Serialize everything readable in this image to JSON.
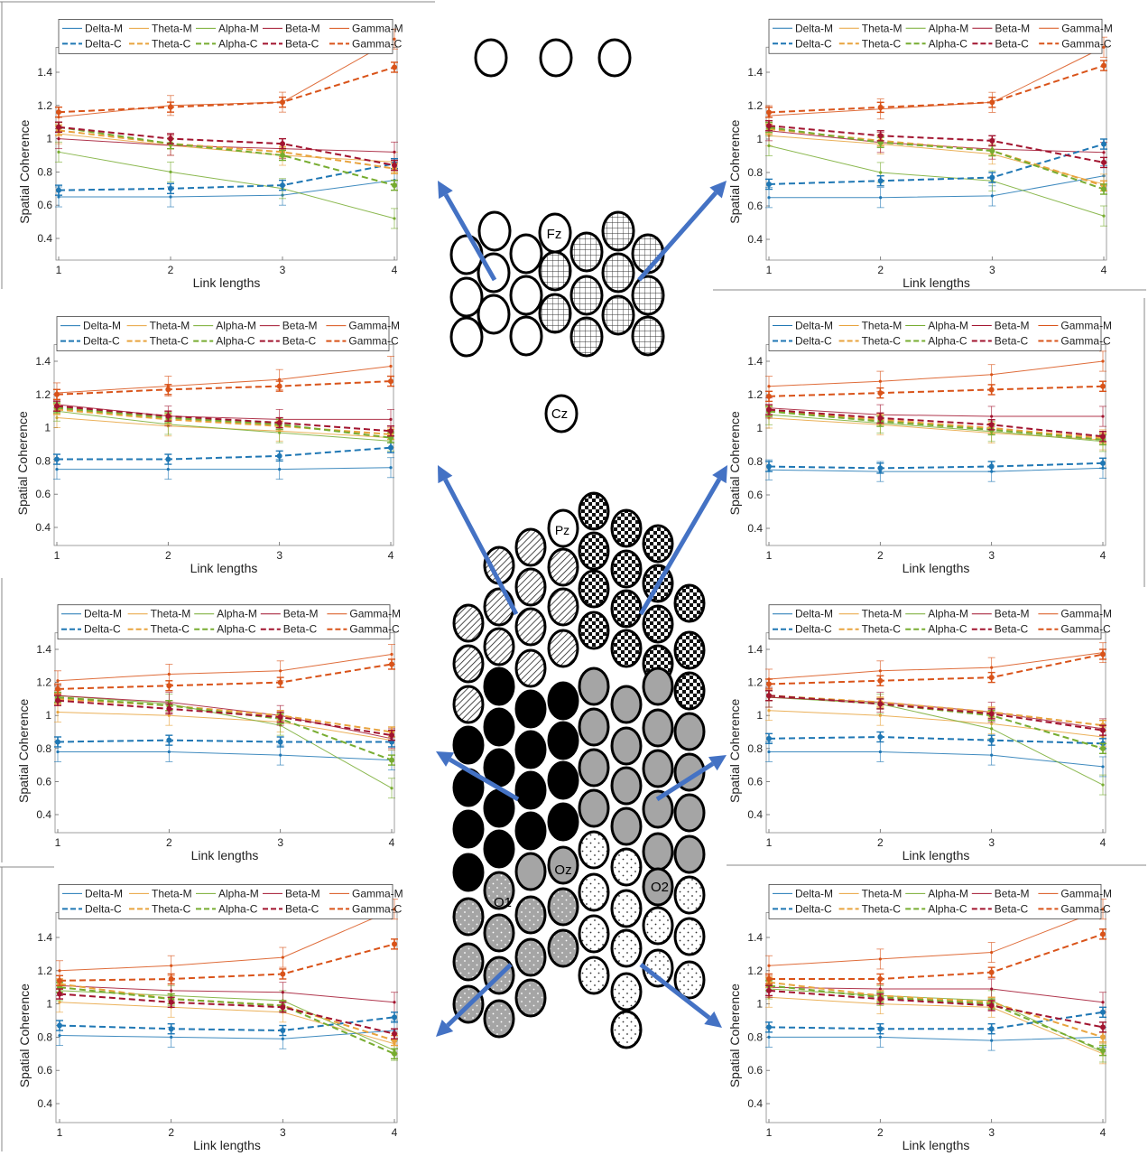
{
  "colors": {
    "Delta": "#1f77b4",
    "Theta": "#e8a33d",
    "Alpha": "#77ac30",
    "Beta": "#a2142f",
    "Gamma": "#d95319",
    "arrow": "#4472c4"
  },
  "legend": {
    "row1": [
      "Delta-M",
      "Theta-M",
      "Alpha-M",
      "Beta-M",
      "Gamma-M"
    ],
    "row2": [
      "Delta-C",
      "Theta-C",
      "Alpha-C",
      "Beta-C",
      "Gamma-C"
    ]
  },
  "electrode_labels": [
    "Fz",
    "Cz",
    "Pz",
    "Oz",
    "O1",
    "O2"
  ],
  "chart_data": [
    {
      "type": "line",
      "panel": "top-left",
      "xlabel": "Link lengths",
      "ylabel": "Spatial Coherence",
      "x": [
        1,
        2,
        3,
        4
      ],
      "xticks": [
        "1",
        "2",
        "3",
        "4"
      ],
      "ylim": [
        0.3,
        1.55
      ],
      "yticks": [
        "0.4",
        "0.6",
        "0.8",
        "1",
        "1.2",
        "1.4"
      ],
      "series": [
        {
          "name": "Delta-M",
          "values": [
            0.65,
            0.65,
            0.66,
            0.75
          ]
        },
        {
          "name": "Theta-M",
          "values": [
            1.03,
            0.96,
            0.9,
            0.86
          ]
        },
        {
          "name": "Alpha-M",
          "values": [
            0.92,
            0.8,
            0.7,
            0.52
          ]
        },
        {
          "name": "Beta-M",
          "values": [
            1.0,
            0.96,
            0.94,
            0.92
          ]
        },
        {
          "name": "Gamma-M",
          "values": [
            1.13,
            1.2,
            1.22,
            1.6
          ]
        },
        {
          "name": "Delta-C",
          "values": [
            0.69,
            0.7,
            0.72,
            0.85
          ]
        },
        {
          "name": "Theta-C",
          "values": [
            1.05,
            0.97,
            0.92,
            0.82
          ]
        },
        {
          "name": "Alpha-C",
          "values": [
            1.07,
            0.97,
            0.9,
            0.72
          ]
        },
        {
          "name": "Beta-C",
          "values": [
            1.07,
            1.0,
            0.97,
            0.84
          ]
        },
        {
          "name": "Gamma-C",
          "values": [
            1.16,
            1.19,
            1.22,
            1.43
          ]
        }
      ]
    },
    {
      "type": "line",
      "panel": "top-right",
      "xlabel": "Link lengths",
      "ylabel": "Spatial Coherence",
      "x": [
        1,
        2,
        3,
        4
      ],
      "xticks": [
        "1",
        "2",
        "3",
        "4"
      ],
      "ylim": [
        0.3,
        1.55
      ],
      "yticks": [
        "0.4",
        "0.6",
        "0.8",
        "1",
        "1.2",
        "1.4"
      ],
      "series": [
        {
          "name": "Delta-M",
          "values": [
            0.65,
            0.65,
            0.66,
            0.78
          ]
        },
        {
          "name": "Theta-M",
          "values": [
            1.02,
            0.97,
            0.91,
            0.73
          ]
        },
        {
          "name": "Alpha-M",
          "values": [
            0.96,
            0.8,
            0.75,
            0.54
          ]
        },
        {
          "name": "Beta-M",
          "values": [
            1.05,
            0.98,
            0.94,
            0.92
          ]
        },
        {
          "name": "Gamma-M",
          "values": [
            1.14,
            1.18,
            1.22,
            1.55
          ]
        },
        {
          "name": "Delta-C",
          "values": [
            0.73,
            0.75,
            0.77,
            0.97
          ]
        },
        {
          "name": "Theta-C",
          "values": [
            1.06,
            0.99,
            0.93,
            0.72
          ]
        },
        {
          "name": "Alpha-C",
          "values": [
            1.07,
            0.98,
            0.93,
            0.7
          ]
        },
        {
          "name": "Beta-C",
          "values": [
            1.08,
            1.02,
            0.99,
            0.86
          ]
        },
        {
          "name": "Gamma-C",
          "values": [
            1.16,
            1.19,
            1.22,
            1.44
          ]
        }
      ]
    },
    {
      "type": "line",
      "panel": "middle-upper-left",
      "xlabel": "Link lengths",
      "ylabel": "Spatial Coherence",
      "x": [
        1,
        2,
        3,
        4
      ],
      "xticks": [
        "1",
        "2",
        "3",
        "4"
      ],
      "ylim": [
        0.3,
        1.5
      ],
      "yticks": [
        "0.4",
        "0.6",
        "0.8",
        "1",
        "1.2",
        "1.4"
      ],
      "series": [
        {
          "name": "Delta-M",
          "values": [
            0.75,
            0.75,
            0.75,
            0.76
          ]
        },
        {
          "name": "Theta-M",
          "values": [
            1.06,
            1.01,
            0.98,
            0.94
          ]
        },
        {
          "name": "Alpha-M",
          "values": [
            1.1,
            1.02,
            0.97,
            0.92
          ]
        },
        {
          "name": "Beta-M",
          "values": [
            1.14,
            1.07,
            1.05,
            1.05
          ]
        },
        {
          "name": "Gamma-M",
          "values": [
            1.21,
            1.25,
            1.29,
            1.37
          ]
        },
        {
          "name": "Delta-C",
          "values": [
            0.81,
            0.81,
            0.83,
            0.88
          ]
        },
        {
          "name": "Theta-C",
          "values": [
            1.11,
            1.05,
            1.01,
            0.96
          ]
        },
        {
          "name": "Alpha-C",
          "values": [
            1.12,
            1.06,
            1.02,
            0.94
          ]
        },
        {
          "name": "Beta-C",
          "values": [
            1.13,
            1.07,
            1.03,
            0.98
          ]
        },
        {
          "name": "Gamma-C",
          "values": [
            1.2,
            1.23,
            1.25,
            1.28
          ]
        }
      ]
    },
    {
      "type": "line",
      "panel": "middle-upper-right",
      "xlabel": "Link lengths",
      "ylabel": "Spatial Coherence",
      "x": [
        1,
        2,
        3,
        4
      ],
      "xticks": [
        "1",
        "2",
        "3",
        "4"
      ],
      "ylim": [
        0.3,
        1.5
      ],
      "yticks": [
        "0.4",
        "0.6",
        "0.8",
        "1",
        "1.2",
        "1.4"
      ],
      "series": [
        {
          "name": "Delta-M",
          "values": [
            0.75,
            0.74,
            0.74,
            0.76
          ]
        },
        {
          "name": "Theta-M",
          "values": [
            1.06,
            1.02,
            0.97,
            0.93
          ]
        },
        {
          "name": "Alpha-M",
          "values": [
            1.08,
            1.03,
            0.98,
            0.92
          ]
        },
        {
          "name": "Beta-M",
          "values": [
            1.12,
            1.08,
            1.07,
            1.07
          ]
        },
        {
          "name": "Gamma-M",
          "values": [
            1.25,
            1.28,
            1.32,
            1.4
          ]
        },
        {
          "name": "Delta-C",
          "values": [
            0.77,
            0.76,
            0.77,
            0.79
          ]
        },
        {
          "name": "Theta-C",
          "values": [
            1.1,
            1.05,
            1.0,
            0.94
          ]
        },
        {
          "name": "Alpha-C",
          "values": [
            1.1,
            1.04,
            0.99,
            0.93
          ]
        },
        {
          "name": "Beta-C",
          "values": [
            1.11,
            1.06,
            1.02,
            0.95
          ]
        },
        {
          "name": "Gamma-C",
          "values": [
            1.19,
            1.21,
            1.23,
            1.25
          ]
        }
      ]
    },
    {
      "type": "line",
      "panel": "middle-lower-left",
      "xlabel": "Link lengths",
      "ylabel": "Spatial Coherence",
      "x": [
        1,
        2,
        3,
        4
      ],
      "xticks": [
        "1",
        "2",
        "3",
        "4"
      ],
      "ylim": [
        0.3,
        1.5
      ],
      "yticks": [
        "0.4",
        "0.6",
        "0.8",
        "1",
        "1.2",
        "1.4"
      ],
      "series": [
        {
          "name": "Delta-M",
          "values": [
            0.78,
            0.78,
            0.76,
            0.73
          ]
        },
        {
          "name": "Theta-M",
          "values": [
            1.02,
            1.0,
            0.96,
            0.85
          ]
        },
        {
          "name": "Alpha-M",
          "values": [
            1.12,
            1.07,
            0.94,
            0.56
          ]
        },
        {
          "name": "Beta-M",
          "values": [
            1.12,
            1.08,
            1.0,
            0.86
          ]
        },
        {
          "name": "Gamma-M",
          "values": [
            1.21,
            1.25,
            1.27,
            1.37
          ]
        },
        {
          "name": "Delta-C",
          "values": [
            0.84,
            0.85,
            0.84,
            0.84
          ]
        },
        {
          "name": "Theta-C",
          "values": [
            1.1,
            1.06,
            1.0,
            0.9
          ]
        },
        {
          "name": "Alpha-C",
          "values": [
            1.11,
            1.06,
            0.98,
            0.73
          ]
        },
        {
          "name": "Beta-C",
          "values": [
            1.09,
            1.04,
            0.99,
            0.88
          ]
        },
        {
          "name": "Gamma-C",
          "values": [
            1.16,
            1.18,
            1.2,
            1.31
          ]
        }
      ]
    },
    {
      "type": "line",
      "panel": "middle-lower-right",
      "xlabel": "Link lengths",
      "ylabel": "Spatial Coherence",
      "x": [
        1,
        2,
        3,
        4
      ],
      "xticks": [
        "1",
        "2",
        "3",
        "4"
      ],
      "ylim": [
        0.3,
        1.5
      ],
      "yticks": [
        "0.4",
        "0.6",
        "0.8",
        "1",
        "1.2",
        "1.4"
      ],
      "series": [
        {
          "name": "Delta-M",
          "values": [
            0.78,
            0.78,
            0.76,
            0.69
          ]
        },
        {
          "name": "Theta-M",
          "values": [
            1.03,
            1.0,
            0.95,
            0.87
          ]
        },
        {
          "name": "Alpha-M",
          "values": [
            1.11,
            1.07,
            0.92,
            0.58
          ]
        },
        {
          "name": "Beta-M",
          "values": [
            1.11,
            1.08,
            1.02,
            0.92
          ]
        },
        {
          "name": "Gamma-M",
          "values": [
            1.22,
            1.27,
            1.29,
            1.38
          ]
        },
        {
          "name": "Delta-C",
          "values": [
            0.86,
            0.87,
            0.85,
            0.83
          ]
        },
        {
          "name": "Theta-C",
          "values": [
            1.12,
            1.08,
            1.02,
            0.94
          ]
        },
        {
          "name": "Alpha-C",
          "values": [
            1.12,
            1.07,
            1.0,
            0.8
          ]
        },
        {
          "name": "Beta-C",
          "values": [
            1.12,
            1.07,
            1.01,
            0.91
          ]
        },
        {
          "name": "Gamma-C",
          "values": [
            1.19,
            1.21,
            1.23,
            1.37
          ]
        }
      ]
    },
    {
      "type": "line",
      "panel": "bottom-left",
      "xlabel": "Link lengths",
      "ylabel": "Spatial Coherence",
      "x": [
        1,
        2,
        3,
        4
      ],
      "xticks": [
        "1",
        "2",
        "3",
        "4"
      ],
      "ylim": [
        0.3,
        1.55
      ],
      "yticks": [
        "0.4",
        "0.6",
        "0.8",
        "1",
        "1.2",
        "1.4"
      ],
      "series": [
        {
          "name": "Delta-M",
          "values": [
            0.81,
            0.8,
            0.79,
            0.84
          ]
        },
        {
          "name": "Theta-M",
          "values": [
            1.01,
            0.98,
            0.95,
            0.76
          ]
        },
        {
          "name": "Alpha-M",
          "values": [
            1.08,
            1.05,
            1.02,
            0.72
          ]
        },
        {
          "name": "Beta-M",
          "values": [
            1.11,
            1.08,
            1.07,
            1.01
          ]
        },
        {
          "name": "Gamma-M",
          "values": [
            1.2,
            1.23,
            1.28,
            1.57
          ]
        },
        {
          "name": "Delta-C",
          "values": [
            0.87,
            0.85,
            0.84,
            0.92
          ]
        },
        {
          "name": "Theta-C",
          "values": [
            1.12,
            1.03,
            0.99,
            0.78
          ]
        },
        {
          "name": "Alpha-C",
          "values": [
            1.1,
            1.03,
            0.99,
            0.7
          ]
        },
        {
          "name": "Beta-C",
          "values": [
            1.06,
            1.01,
            0.98,
            0.82
          ]
        },
        {
          "name": "Gamma-C",
          "values": [
            1.14,
            1.15,
            1.18,
            1.36
          ]
        }
      ]
    },
    {
      "type": "line",
      "panel": "bottom-right",
      "xlabel": "Link lengths",
      "ylabel": "Spatial Coherence",
      "x": [
        1,
        2,
        3,
        4
      ],
      "xticks": [
        "1",
        "2",
        "3",
        "4"
      ],
      "ylim": [
        0.3,
        1.55
      ],
      "yticks": [
        "0.4",
        "0.6",
        "0.8",
        "1",
        "1.2",
        "1.4"
      ],
      "series": [
        {
          "name": "Delta-M",
          "values": [
            0.8,
            0.8,
            0.78,
            0.8
          ]
        },
        {
          "name": "Theta-M",
          "values": [
            1.04,
            1.0,
            0.98,
            0.7
          ]
        },
        {
          "name": "Alpha-M",
          "values": [
            1.09,
            1.05,
            1.02,
            0.71
          ]
        },
        {
          "name": "Beta-M",
          "values": [
            1.1,
            1.09,
            1.09,
            1.01
          ]
        },
        {
          "name": "Gamma-M",
          "values": [
            1.23,
            1.27,
            1.31,
            1.57
          ]
        },
        {
          "name": "Delta-C",
          "values": [
            0.86,
            0.85,
            0.85,
            0.95
          ]
        },
        {
          "name": "Theta-C",
          "values": [
            1.13,
            1.05,
            1.01,
            0.8
          ]
        },
        {
          "name": "Alpha-C",
          "values": [
            1.11,
            1.04,
            1.0,
            0.72
          ]
        },
        {
          "name": "Beta-C",
          "values": [
            1.08,
            1.03,
            0.99,
            0.86
          ]
        },
        {
          "name": "Gamma-C",
          "values": [
            1.15,
            1.15,
            1.19,
            1.42
          ]
        }
      ]
    }
  ]
}
